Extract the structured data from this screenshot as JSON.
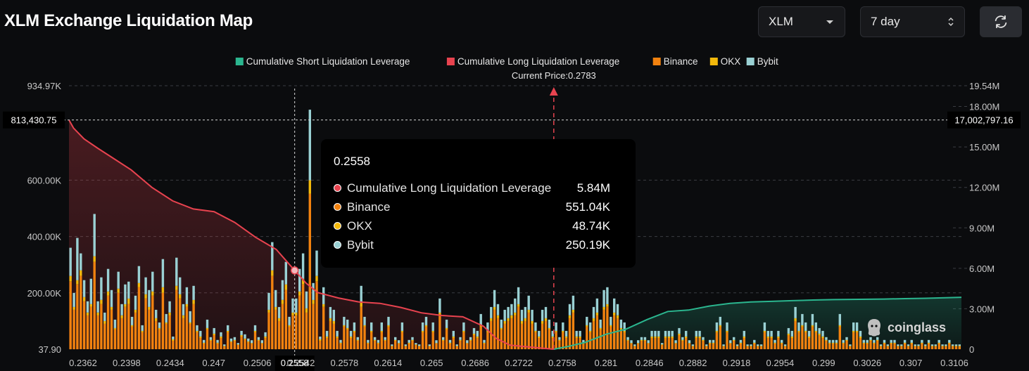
{
  "header": {
    "title": "XLM Exchange Liquidation Map",
    "coin_value": "XLM",
    "range_value": "7 day"
  },
  "colors": {
    "short": "#2bb68f",
    "long": "#e8434f",
    "binance": "#f2820f",
    "okx": "#f3b90b",
    "bybit": "#9ad1d4",
    "background": "#0b0c0e"
  },
  "icons": [
    "chevron-down-icon",
    "updown-icon",
    "refresh-icon",
    "coinglass-logo-icon"
  ],
  "tooltip": {
    "price": "0.2558",
    "rows": [
      {
        "label": "Cumulative Long Liquidation Leverage",
        "value": "5.84M",
        "color": "#e8434f"
      },
      {
        "label": "Binance",
        "value": "551.04K",
        "color": "#f2820f"
      },
      {
        "label": "OKX",
        "value": "48.74K",
        "color": "#f3b90b"
      },
      {
        "label": "Bybit",
        "value": "250.19K",
        "color": "#9ad1d4"
      }
    ]
  },
  "watermark": "coinglass",
  "chart_data": {
    "type": "bar",
    "legend_position": "top-center",
    "legend": [
      "Cumulative Short Liquidation Leverage",
      "Cumulative Long Liquidation Leverage",
      "Binance",
      "OKX",
      "Bybit"
    ],
    "current_price_label": "Current Price:0.2783",
    "current_price": 0.2783,
    "x_tick_labels": [
      "0.2362",
      "0.2398",
      "0.2434",
      "0.247",
      "0.2506",
      "0.2542",
      "0.2578",
      "0.2614",
      "0.265",
      "0.2686",
      "0.2722",
      "0.2758",
      "0.281",
      "0.2846",
      "0.2882",
      "0.2918",
      "0.2954",
      "0.299",
      "0.3026",
      "0.307",
      "0.3106"
    ],
    "x_range": [
      0.2362,
      0.3137
    ],
    "left_axis_ticks": [
      "37.90",
      "200.00K",
      "400.00K",
      "600.00K",
      "934.97K"
    ],
    "left_axis_tick_values": [
      37.9,
      200000,
      400000,
      600000,
      934970
    ],
    "left_ylim": [
      37.9,
      934970
    ],
    "right_axis_ticks": [
      "0",
      "3.00M",
      "6.00M",
      "9.00M",
      "12.00M",
      "15.00M",
      "18.00M",
      "19.54M"
    ],
    "right_axis_tick_values": [
      0,
      3000000,
      6000000,
      9000000,
      12000000,
      15000000,
      18000000,
      19540000
    ],
    "right_ylim": [
      0,
      19540000
    ],
    "crosshair": {
      "x": 0.2558,
      "x_label": "0.2558",
      "left_value_label": "813,430.75",
      "left_value": 813430.75,
      "right_value_label": "17,002,797.16"
    },
    "bar_series": [
      {
        "name": "Binance",
        "values": [
          240000,
          140000,
          230000,
          260000,
          170000,
          120000,
          150000,
          310000,
          120000,
          160000,
          90000,
          190000,
          140000,
          70000,
          200000,
          110000,
          150000,
          160000,
          80000,
          130000,
          220000,
          60000,
          180000,
          140000,
          190000,
          100000,
          70000,
          200000,
          90000,
          120000,
          30000,
          210000,
          180000,
          110000,
          150000,
          90000,
          160000,
          60000,
          40000,
          20000,
          70000,
          30000,
          50000,
          20000,
          40000,
          10000,
          60000,
          25000,
          30000,
          15000,
          45000,
          35000,
          25000,
          20000,
          60000,
          30000,
          20000,
          40000,
          130000,
          260000,
          140000,
          100000,
          160000,
          210000,
          80000,
          120000,
          120000,
          190000,
          230000,
          130000,
          551040,
          160000,
          240000,
          30000,
          150000,
          40000,
          100000,
          90000,
          40000,
          20000,
          80000,
          70000,
          40000,
          60000,
          30000,
          150000,
          80000,
          20000,
          60000,
          30000,
          20000,
          60000,
          30000,
          80000,
          10000,
          30000,
          20000,
          60000,
          10000,
          20000,
          30000,
          15000,
          10000,
          60000,
          80000,
          10000,
          60000,
          20000,
          120000,
          30000,
          70000,
          20000,
          40000,
          10000,
          30000,
          60000,
          20000,
          30000,
          50000,
          40000,
          80000,
          20000,
          60000,
          100000,
          140000,
          110000,
          70000,
          90000,
          100000,
          110000,
          120000,
          150000,
          90000,
          100000,
          130000,
          90000,
          60000,
          40000,
          90000,
          100000,
          70000,
          40000,
          60000,
          30000,
          60000,
          40000,
          110000,
          130000,
          40000,
          40000,
          20000,
          80000,
          60000,
          100000,
          120000,
          70000,
          140000,
          150000,
          80000,
          120000,
          110000,
          70000,
          60000,
          30000,
          20000,
          10000,
          20000,
          30000,
          30000,
          20000,
          40000,
          40000,
          40000,
          15000,
          40000,
          40000,
          40000,
          20000,
          50000,
          30000,
          40000,
          20000,
          10000,
          40000,
          40000,
          30000,
          10000,
          20000,
          20000,
          60000,
          80000,
          10000,
          60000,
          20000,
          30000,
          10000,
          20000,
          40000,
          10000,
          10000,
          20000,
          10000,
          10000,
          60000,
          40000,
          40000,
          20000,
          40000,
          20000,
          10000,
          50000,
          40000,
          100000,
          60000,
          80000,
          60000,
          40000,
          80000,
          60000,
          50000,
          40000,
          30000,
          20000,
          20000,
          20000,
          80000,
          20000,
          30000,
          10000,
          60000,
          60000,
          40000,
          20000,
          20000,
          30000,
          20000,
          30000,
          10000,
          20000,
          10000,
          20000,
          20000,
          10000,
          10000,
          20000,
          10000,
          20000,
          10000,
          10000,
          20000,
          10000,
          20000,
          10000,
          10000,
          20000,
          10000,
          10000,
          20000,
          10000,
          10000,
          10000
        ]
      },
      {
        "name": "OKX",
        "values": [
          20000,
          10000,
          15000,
          20000,
          15000,
          10000,
          10000,
          20000,
          10000,
          15000,
          10000,
          15000,
          10000,
          5000,
          15000,
          10000,
          10000,
          20000,
          5000,
          10000,
          15000,
          5000,
          15000,
          10000,
          15000,
          10000,
          5000,
          20000,
          5000,
          10000,
          5000,
          15000,
          15000,
          10000,
          10000,
          5000,
          15000,
          5000,
          5000,
          3000,
          5000,
          3000,
          5000,
          3000,
          5000,
          2000,
          5000,
          3000,
          3000,
          2000,
          5000,
          3000,
          3000,
          2000,
          5000,
          3000,
          2000,
          5000,
          10000,
          20000,
          10000,
          10000,
          15000,
          20000,
          5000,
          10000,
          10000,
          15000,
          20000,
          15000,
          48740,
          15000,
          20000,
          5000,
          10000,
          5000,
          10000,
          10000,
          5000,
          3000,
          5000,
          5000,
          5000,
          5000,
          3000,
          15000,
          5000,
          3000,
          5000,
          3000,
          3000,
          5000,
          3000,
          5000,
          2000,
          3000,
          2000,
          5000,
          2000,
          3000,
          3000,
          2000,
          2000,
          5000,
          5000,
          2000,
          5000,
          2000,
          10000,
          3000,
          5000,
          3000,
          5000,
          2000,
          3000,
          5000,
          2000,
          3000,
          5000,
          5000,
          5000,
          3000,
          5000,
          10000,
          10000,
          10000,
          5000,
          10000,
          10000,
          10000,
          10000,
          10000,
          10000,
          10000,
          10000,
          10000,
          5000,
          5000,
          10000,
          10000,
          5000,
          5000,
          5000,
          3000,
          5000,
          5000,
          10000,
          10000,
          5000,
          5000,
          3000,
          5000,
          5000,
          10000,
          10000,
          5000,
          10000,
          10000,
          5000,
          10000,
          10000,
          5000,
          5000,
          3000,
          2000,
          2000,
          2000,
          3000,
          3000,
          2000,
          5000,
          5000,
          5000,
          2000,
          5000,
          5000,
          5000,
          2000,
          5000,
          3000,
          5000,
          2000,
          2000,
          5000,
          5000,
          3000,
          2000,
          3000,
          3000,
          5000,
          5000,
          2000,
          5000,
          2000,
          3000,
          2000,
          3000,
          5000,
          2000,
          2000,
          3000,
          2000,
          2000,
          5000,
          5000,
          5000,
          3000,
          5000,
          3000,
          2000,
          5000,
          5000,
          10000,
          5000,
          5000,
          5000,
          5000,
          5000,
          5000,
          5000,
          5000,
          3000,
          3000,
          3000,
          3000,
          5000,
          3000,
          3000,
          2000,
          5000,
          5000,
          5000,
          3000,
          3000,
          3000,
          3000,
          3000,
          2000,
          3000,
          2000,
          3000,
          3000,
          2000,
          2000,
          3000,
          2000,
          3000,
          2000,
          2000,
          3000,
          2000,
          3000,
          2000,
          2000,
          3000,
          2000,
          2000,
          3000,
          2000,
          2000,
          2000
        ]
      },
      {
        "name": "Bybit",
        "values": [
          100000,
          50000,
          150000,
          60000,
          60000,
          40000,
          90000,
          150000,
          40000,
          80000,
          30000,
          80000,
          60000,
          30000,
          60000,
          40000,
          70000,
          60000,
          30000,
          50000,
          60000,
          20000,
          60000,
          60000,
          70000,
          30000,
          20000,
          100000,
          30000,
          40000,
          10000,
          100000,
          60000,
          40000,
          60000,
          40000,
          50000,
          20000,
          20000,
          10000,
          30000,
          10000,
          20000,
          10000,
          15000,
          5000,
          20000,
          10000,
          10000,
          5000,
          15000,
          15000,
          10000,
          10000,
          20000,
          10000,
          10000,
          15000,
          60000,
          100000,
          60000,
          40000,
          70000,
          80000,
          30000,
          50000,
          50000,
          80000,
          90000,
          60000,
          250190,
          60000,
          90000,
          10000,
          60000,
          20000,
          40000,
          40000,
          20000,
          10000,
          30000,
          30000,
          20000,
          30000,
          10000,
          60000,
          30000,
          10000,
          30000,
          10000,
          10000,
          30000,
          10000,
          30000,
          5000,
          10000,
          10000,
          30000,
          5000,
          10000,
          10000,
          5000,
          5000,
          30000,
          30000,
          5000,
          30000,
          10000,
          50000,
          10000,
          30000,
          10000,
          20000,
          5000,
          10000,
          30000,
          10000,
          10000,
          20000,
          20000,
          40000,
          10000,
          30000,
          40000,
          60000,
          40000,
          30000,
          40000,
          40000,
          40000,
          50000,
          60000,
          40000,
          40000,
          50000,
          40000,
          30000,
          20000,
          40000,
          40000,
          30000,
          20000,
          30000,
          10000,
          30000,
          20000,
          40000,
          50000,
          20000,
          20000,
          10000,
          30000,
          30000,
          40000,
          50000,
          30000,
          60000,
          60000,
          30000,
          50000,
          40000,
          30000,
          30000,
          10000,
          10000,
          5000,
          10000,
          10000,
          10000,
          10000,
          20000,
          20000,
          20000,
          5000,
          20000,
          20000,
          20000,
          10000,
          20000,
          10000,
          20000,
          10000,
          5000,
          20000,
          20000,
          10000,
          5000,
          10000,
          10000,
          30000,
          30000,
          5000,
          30000,
          10000,
          10000,
          5000,
          10000,
          20000,
          5000,
          5000,
          10000,
          5000,
          5000,
          30000,
          20000,
          20000,
          10000,
          20000,
          10000,
          5000,
          20000,
          20000,
          40000,
          30000,
          40000,
          30000,
          20000,
          40000,
          30000,
          20000,
          20000,
          10000,
          10000,
          10000,
          10000,
          40000,
          10000,
          10000,
          5000,
          30000,
          30000,
          20000,
          10000,
          10000,
          10000,
          10000,
          10000,
          5000,
          10000,
          5000,
          10000,
          10000,
          5000,
          5000,
          10000,
          5000,
          10000,
          5000,
          5000,
          10000,
          5000,
          10000,
          5000,
          5000,
          10000,
          5000,
          5000,
          10000,
          5000,
          5000,
          5000
        ]
      }
    ],
    "line_series": [
      {
        "name": "Cumulative Long Liquidation Leverage",
        "axis": "right",
        "x": [
          0.2362,
          0.2366,
          0.2375,
          0.2387,
          0.2398,
          0.2416,
          0.2434,
          0.2452,
          0.247,
          0.2488,
          0.2506,
          0.2524,
          0.2542,
          0.2558,
          0.2568,
          0.2578,
          0.2596,
          0.2614,
          0.2632,
          0.265,
          0.2668,
          0.2686,
          0.2704,
          0.2722,
          0.2733,
          0.2745,
          0.2758,
          0.2783
        ],
        "y": [
          17000000,
          16400000,
          15600000,
          14900000,
          14300000,
          13300000,
          12000000,
          11000000,
          10400000,
          10200000,
          9400000,
          8300000,
          7400000,
          5840000,
          4900000,
          4200000,
          3800000,
          3500000,
          3400000,
          3100000,
          2700000,
          2500000,
          2400000,
          1700000,
          800000,
          300000,
          200000,
          0
        ]
      },
      {
        "name": "Cumulative Short Liquidation Leverage",
        "axis": "right",
        "x": [
          0.2783,
          0.2795,
          0.281,
          0.2828,
          0.2846,
          0.2864,
          0.2882,
          0.29,
          0.2918,
          0.2936,
          0.2954,
          0.2972,
          0.299,
          0.3008,
          0.3026,
          0.3048,
          0.307,
          0.3088,
          0.3106,
          0.3137
        ],
        "y": [
          0,
          200000,
          500000,
          1100000,
          1500000,
          2200000,
          2800000,
          2900000,
          3200000,
          3400000,
          3500000,
          3550000,
          3600000,
          3650000,
          3680000,
          3700000,
          3720000,
          3750000,
          3780000,
          3850000
        ]
      }
    ]
  }
}
